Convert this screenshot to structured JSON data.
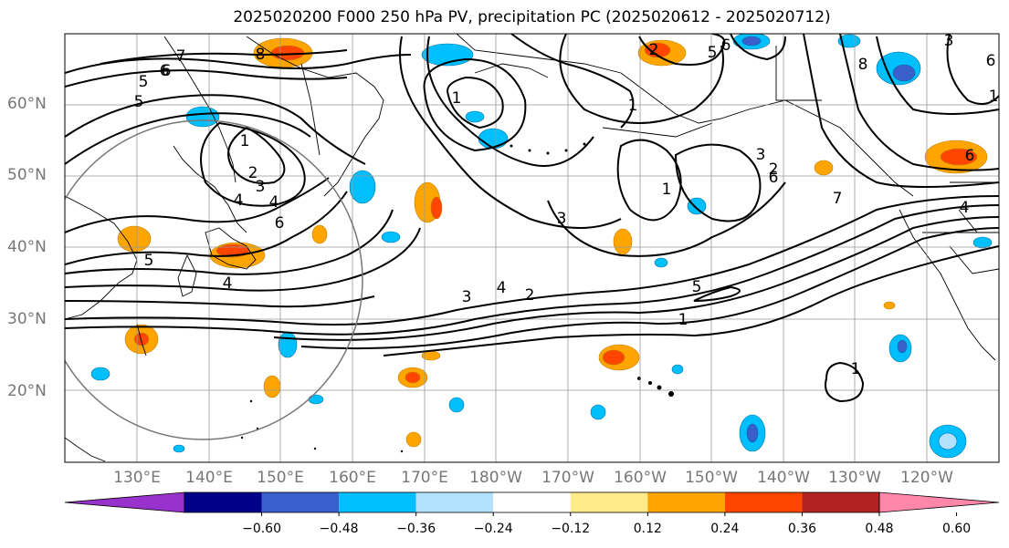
{
  "title": "2025020200 F000 250 hPa PV, precipitation PC (2025020612 - 2025020712)",
  "lat_labels": [
    "60°N",
    "50°N",
    "40°N",
    "30°N",
    "20°N"
  ],
  "lon_labels": [
    "130°E",
    "140°E",
    "150°E",
    "160°E",
    "170°E",
    "180°W",
    "170°W",
    "160°W",
    "150°W",
    "140°W",
    "130°W",
    "120°W"
  ],
  "colorbar": {
    "ticks": [
      "−0.60",
      "−0.48",
      "−0.36",
      "−0.24",
      "−0.12",
      "0.12",
      "0.24",
      "0.36",
      "0.48",
      "0.60"
    ],
    "colors": [
      "#9932cc",
      "#00008b",
      "#3a5fcd",
      "#00bfff",
      "#b2e2ff",
      "#ffffff",
      "#ffeb8a",
      "#ffa500",
      "#ff4500",
      "#b22222",
      "#ff88aa"
    ]
  },
  "contour_labels": [
    "7",
    "6",
    "5",
    "8",
    "2",
    "3",
    "4",
    "6",
    "1",
    "1",
    "3",
    "1",
    "5",
    "5",
    "6",
    "2",
    "6",
    "1",
    "1",
    "3",
    "6",
    "7",
    "4",
    "4",
    "2",
    "3",
    "5",
    "4",
    "2",
    "1",
    "1",
    "6",
    "4",
    "8",
    "3",
    "5",
    "6"
  ]
}
